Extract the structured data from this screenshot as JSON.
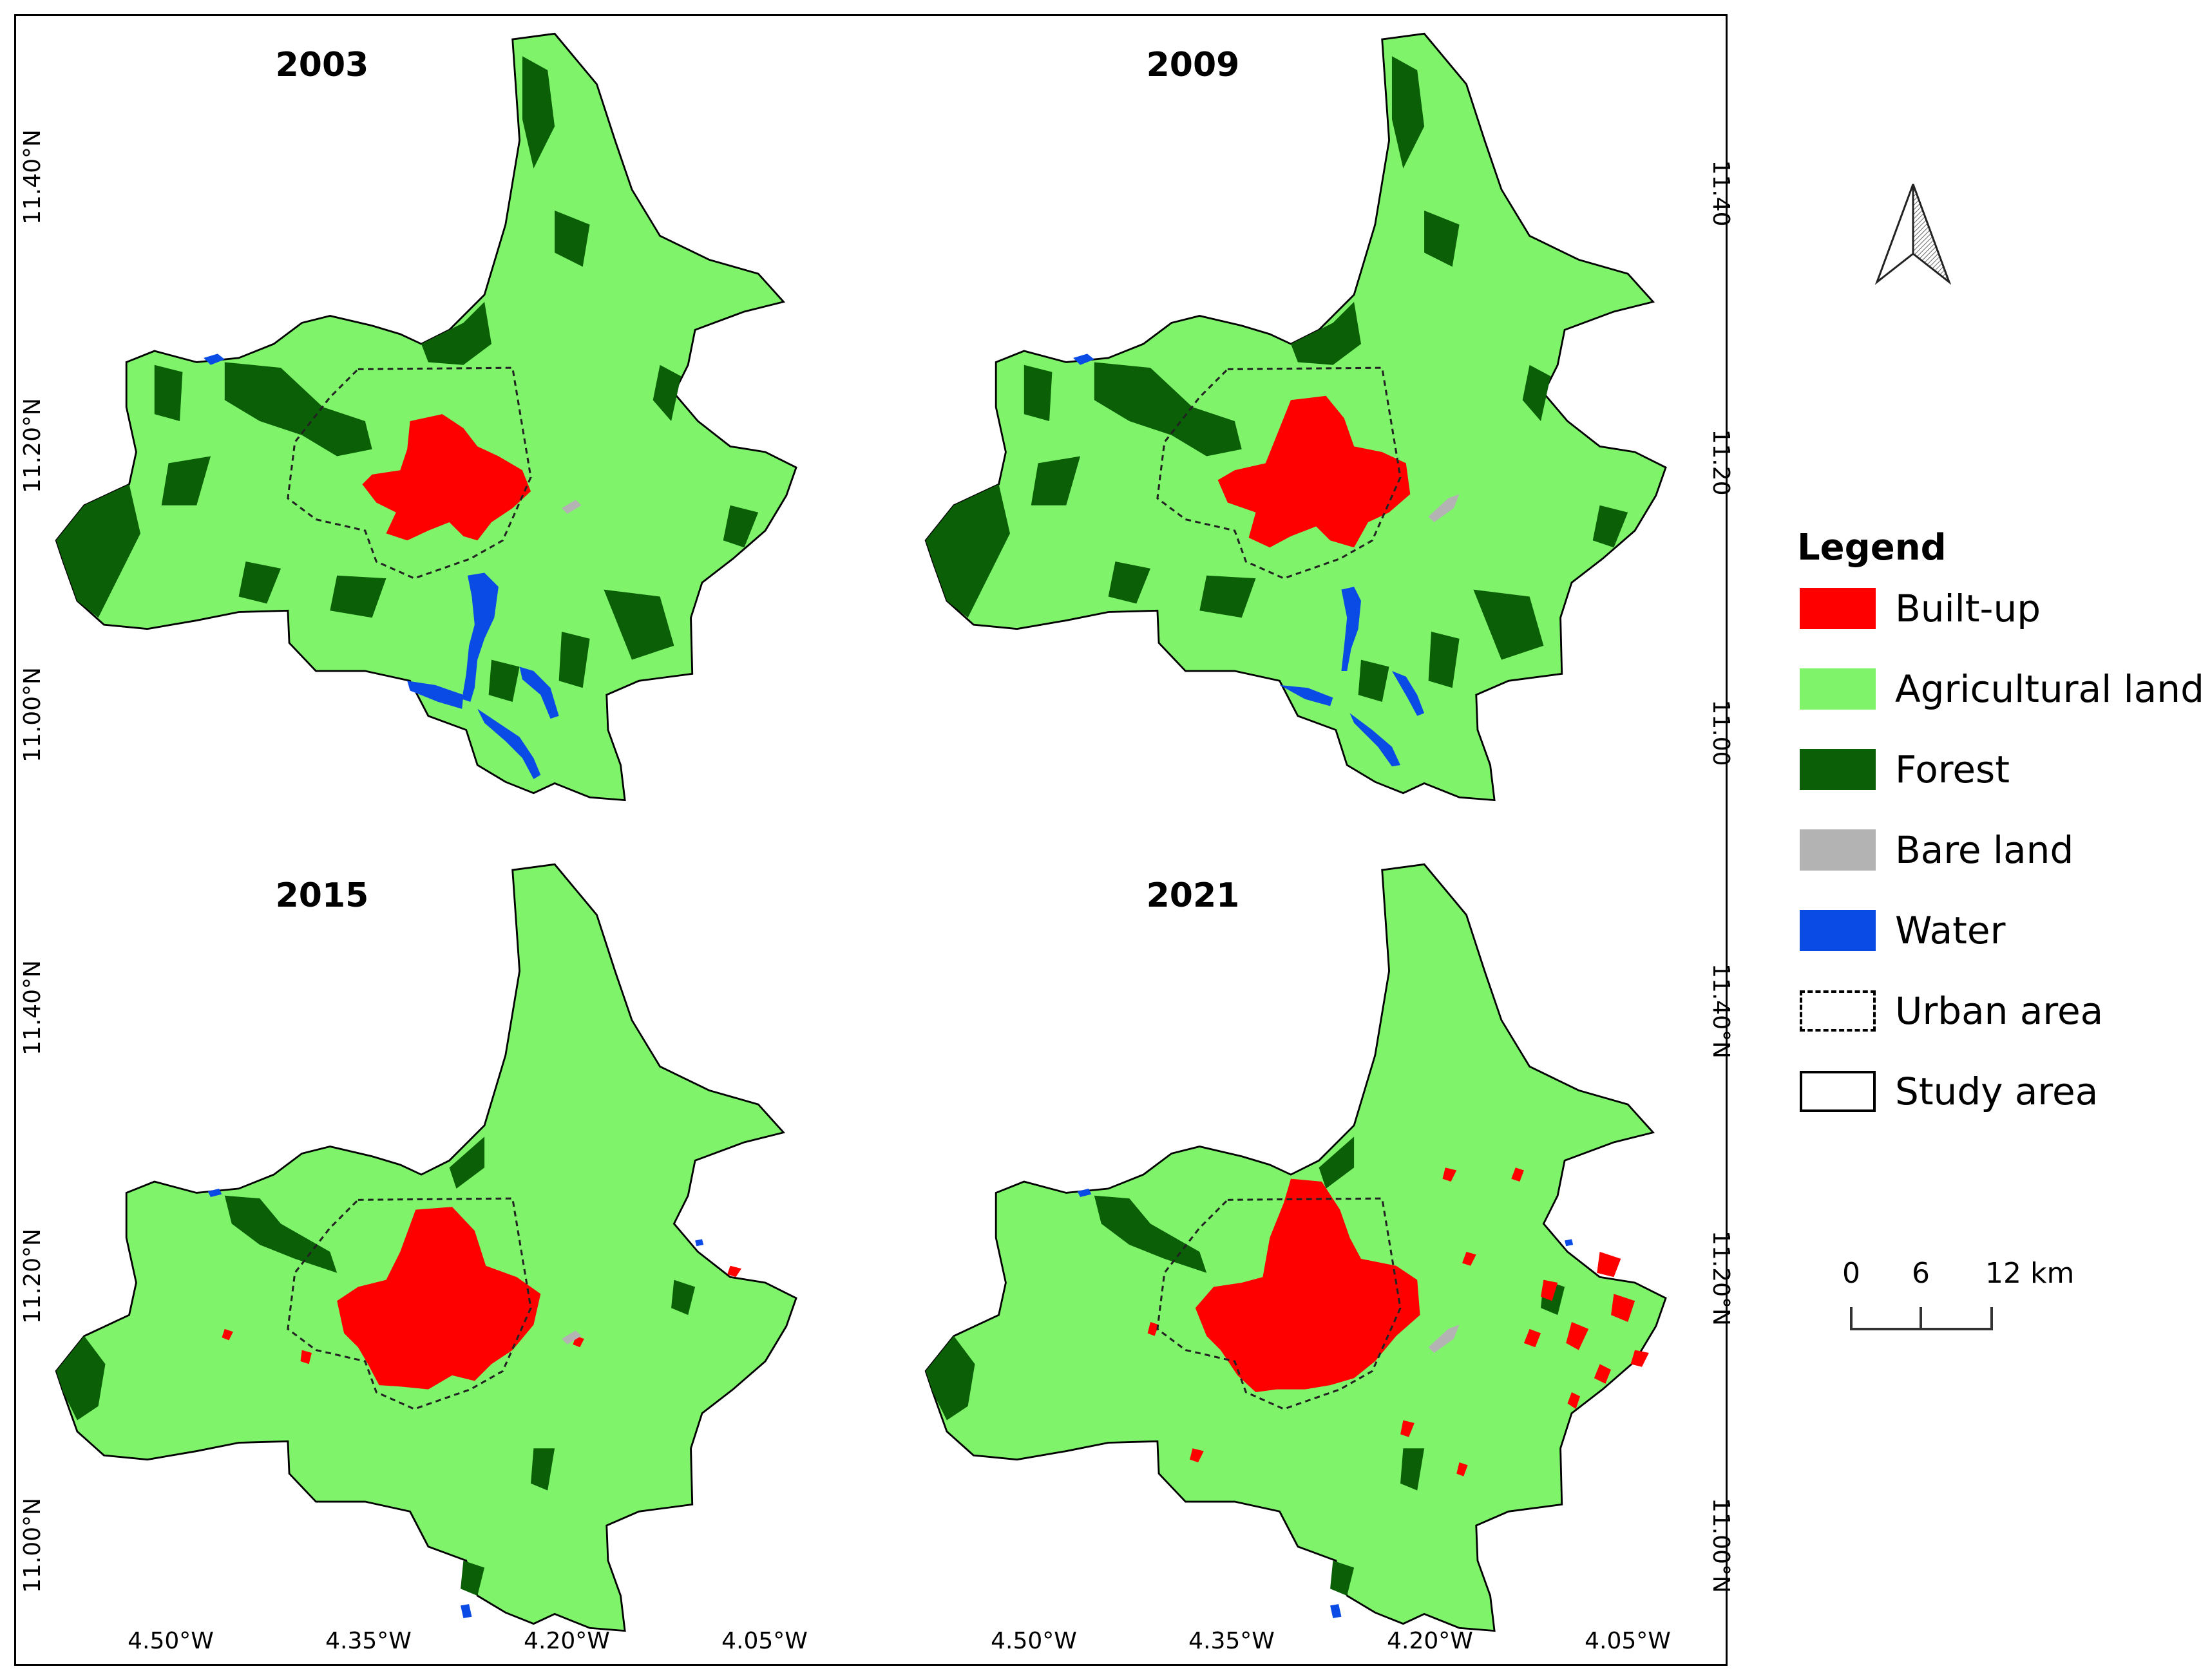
{
  "panels": [
    {
      "year": "2003"
    },
    {
      "year": "2009"
    },
    {
      "year": "2015"
    },
    {
      "year": "2021"
    }
  ],
  "axes": {
    "x_ticks": [
      "4.50°W",
      "4.35°W",
      "4.20°W",
      "4.05°W"
    ],
    "y_ticks_left": [
      "11.40°N",
      "11.20°N",
      "11.00°N"
    ],
    "y_ticks_right_top": [
      "11.40",
      "11.20",
      "11.00"
    ],
    "y_ticks_right_bottom": [
      "11.40°N",
      "11.20°N",
      "11.00°N"
    ]
  },
  "legend": {
    "title": "Legend",
    "items": [
      {
        "label": "Built-up",
        "color": "#ff0000",
        "style": "fill"
      },
      {
        "label": "Agricultural land",
        "color": "#7ff36a",
        "style": "fill"
      },
      {
        "label": "Forest",
        "color": "#0a5f07",
        "style": "fill"
      },
      {
        "label": "Bare land",
        "color": "#b3b3b3",
        "style": "fill"
      },
      {
        "label": "Water",
        "color": "#0a4be6",
        "style": "fill"
      },
      {
        "label": "Urban area",
        "color": "#000000",
        "style": "dashed-outline"
      },
      {
        "label": "Study area",
        "color": "#000000",
        "style": "solid-outline"
      }
    ]
  },
  "scale_bar": {
    "labels": [
      "0",
      "6",
      "12 km"
    ]
  },
  "north_arrow": {
    "icon": "north-arrow-icon"
  },
  "colors": {
    "builtup": "#ff0000",
    "agricultural": "#7ff36a",
    "forest": "#0a5f07",
    "bare": "#b3b3b3",
    "water": "#0a4be6"
  }
}
